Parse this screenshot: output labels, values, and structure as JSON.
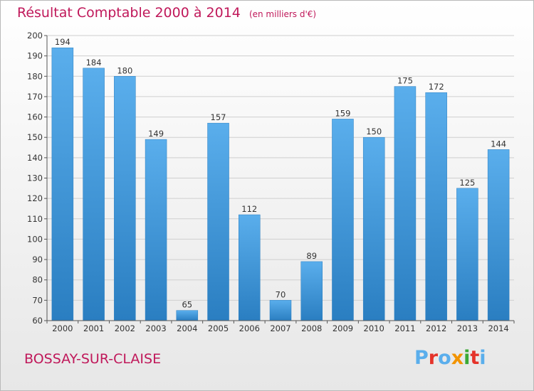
{
  "header": {
    "title": "Résultat Comptable 2000 à 2014",
    "subtitle": "(en milliers d'€)"
  },
  "footer": {
    "commune": "BOSSAY-SUR-CLAISE",
    "logo_text": "Proxiti"
  },
  "colors": {
    "title": "#c0185a",
    "bar_top": "#5aaeec",
    "bar_bottom": "#2a7ec1",
    "logo": [
      "#5aaeec",
      "#e5332a",
      "#5aaeec",
      "#f29400",
      "#3aa935",
      "#e5332a",
      "#5aaeec"
    ]
  },
  "chart_data": {
    "type": "bar",
    "title": "Résultat Comptable 2000 à 2014",
    "xlabel": "",
    "ylabel": "",
    "ylim": [
      60,
      200
    ],
    "yticks": [
      60,
      70,
      80,
      90,
      100,
      110,
      120,
      130,
      140,
      150,
      160,
      170,
      180,
      190,
      200
    ],
    "grid": true,
    "categories": [
      "2000",
      "2001",
      "2002",
      "2003",
      "2004",
      "2005",
      "2006",
      "2007",
      "2008",
      "2009",
      "2010",
      "2011",
      "2012",
      "2013",
      "2014"
    ],
    "values": [
      194,
      184,
      180,
      149,
      65,
      157,
      112,
      70,
      89,
      159,
      150,
      175,
      172,
      125,
      144
    ]
  }
}
